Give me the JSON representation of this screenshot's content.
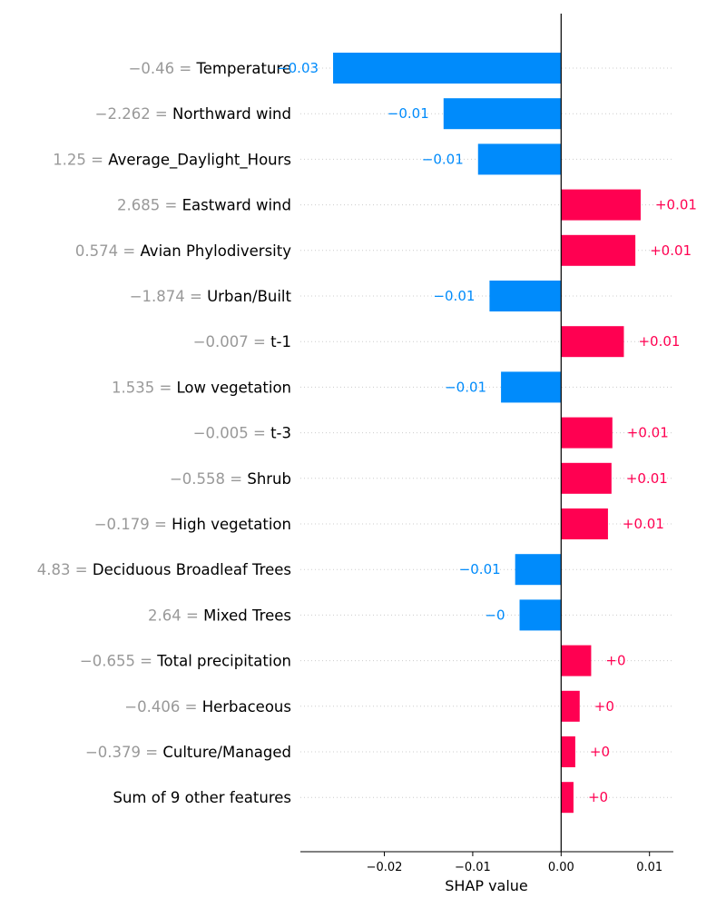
{
  "chart_data": {
    "type": "bar",
    "orientation": "horizontal",
    "xlabel": "SHAP value",
    "xlim": [
      -0.0295,
      0.0127
    ],
    "x_ticks": [
      {
        "value": -0.02,
        "label": "−0.02"
      },
      {
        "value": -0.01,
        "label": "−0.01"
      },
      {
        "value": 0.0,
        "label": "0.00"
      },
      {
        "value": 0.01,
        "label": "0.01"
      }
    ],
    "colors": {
      "positive": "#ff0051",
      "negative": "#008bfb",
      "feature_value": "#999999",
      "feature_name": "#000000"
    },
    "features": [
      {
        "value_label": "−0.46 = ",
        "name": "Temperature",
        "shap": -0.0258,
        "label": "−0.03"
      },
      {
        "value_label": "−2.262 = ",
        "name": "Northward wind",
        "shap": -0.0133,
        "label": "−0.01"
      },
      {
        "value_label": "1.25 = ",
        "name": "Average_Daylight_Hours",
        "shap": -0.0094,
        "label": "−0.01"
      },
      {
        "value_label": "2.685 = ",
        "name": "Eastward wind",
        "shap": 0.009,
        "label": "+0.01"
      },
      {
        "value_label": "0.574 = ",
        "name": "Avian Phylodiversity",
        "shap": 0.0084,
        "label": "+0.01"
      },
      {
        "value_label": "−1.874 = ",
        "name": "Urban/Built",
        "shap": -0.0081,
        "label": "−0.01"
      },
      {
        "value_label": "−0.007 = ",
        "name": "t-1",
        "shap": 0.0071,
        "label": "+0.01"
      },
      {
        "value_label": "1.535 = ",
        "name": "Low vegetation",
        "shap": -0.0068,
        "label": "−0.01"
      },
      {
        "value_label": "−0.005 = ",
        "name": "t-3",
        "shap": 0.0058,
        "label": "+0.01"
      },
      {
        "value_label": "−0.558 = ",
        "name": "Shrub",
        "shap": 0.0057,
        "label": "+0.01"
      },
      {
        "value_label": "−0.179 = ",
        "name": "High vegetation",
        "shap": 0.0053,
        "label": "+0.01"
      },
      {
        "value_label": "4.83 = ",
        "name": "Deciduous Broadleaf Trees",
        "shap": -0.0052,
        "label": "−0.01"
      },
      {
        "value_label": "2.64 = ",
        "name": "Mixed Trees",
        "shap": -0.0047,
        "label": "−0"
      },
      {
        "value_label": "−0.655 = ",
        "name": "Total precipitation",
        "shap": 0.0034,
        "label": "+0"
      },
      {
        "value_label": "−0.406 = ",
        "name": "Herbaceous",
        "shap": 0.0021,
        "label": "+0"
      },
      {
        "value_label": "−0.379 = ",
        "name": "Culture/Managed",
        "shap": 0.0016,
        "label": "+0"
      },
      {
        "value_label": "",
        "name": "Sum of 9 other features",
        "shap": 0.0014,
        "label": "+0"
      }
    ]
  }
}
